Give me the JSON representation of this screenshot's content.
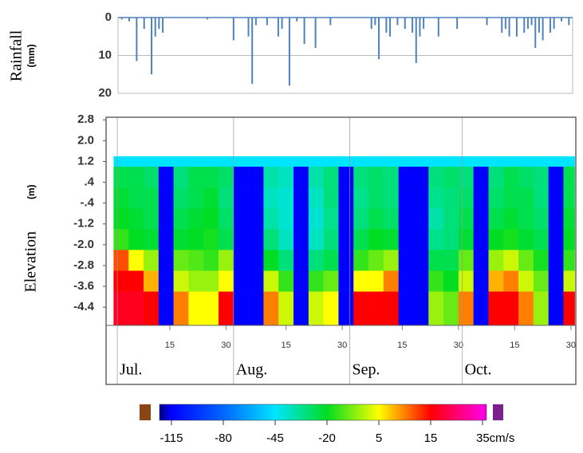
{
  "chart_data": [
    {
      "type": "bar",
      "ylabel": "Rainfall",
      "yunit": "(mm)",
      "color": "#4f81bd",
      "ylim": [
        0,
        20
      ],
      "yticks": [
        0,
        10,
        20
      ],
      "y_reversed": true,
      "grid": true,
      "xlim": [
        0,
        122
      ],
      "x": [
        1,
        3,
        5,
        7,
        9,
        10,
        11,
        12,
        24,
        31,
        35,
        36,
        37,
        40,
        43,
        44,
        46,
        48,
        50,
        53,
        57,
        68,
        69,
        70,
        72,
        73,
        75,
        77,
        79,
        80,
        81,
        82,
        86,
        91,
        99,
        103,
        104,
        105,
        107,
        109,
        110,
        111,
        112,
        113,
        114,
        116,
        117,
        119,
        121
      ],
      "values": [
        0.5,
        1,
        11.5,
        3,
        15,
        5,
        3,
        4,
        0.5,
        6,
        5,
        17.5,
        2,
        2,
        5,
        3,
        18,
        1,
        7,
        8,
        2,
        3,
        2,
        11,
        4,
        5,
        2,
        3,
        4,
        12,
        5,
        3,
        5,
        3,
        2,
        4,
        3,
        5,
        5,
        4,
        3,
        2,
        8,
        4,
        6,
        4,
        3,
        1,
        2
      ]
    },
    {
      "type": "heatmap",
      "ylabel": "Elevation",
      "yunit": "(m)",
      "xlim": [
        -3,
        122.3
      ],
      "ylim": [
        -5.1,
        2.9
      ],
      "yticks": [
        2.8,
        {
          "value": 2,
          "label": "2.0"
        },
        1.2,
        {
          "value": 0.4,
          "label": ".4"
        },
        {
          "value": -0.4,
          "label": "-.4"
        },
        -1.2,
        {
          "value": -2,
          "label": "-2.0"
        },
        -2.8,
        -3.6,
        -4.4
      ],
      "xticks": [
        {
          "value": 14,
          "label": "15"
        },
        {
          "value": 29,
          "label": "30"
        },
        {
          "value": 45,
          "label": "15"
        },
        {
          "value": 60,
          "label": "30"
        },
        {
          "value": 76,
          "label": "15"
        },
        {
          "value": 91,
          "label": "30"
        },
        {
          "value": 106,
          "label": "15"
        },
        {
          "value": 121,
          "label": "30"
        }
      ],
      "months": [
        {
          "value": 0,
          "label": "Jul."
        },
        {
          "value": 31,
          "label": "Aug."
        },
        {
          "value": 62,
          "label": "Sep."
        },
        {
          "value": 92,
          "label": "Oct."
        }
      ],
      "x_edges": [
        -1,
        3,
        7,
        11,
        15,
        19,
        23,
        27,
        31,
        35,
        39,
        43,
        47,
        51,
        55,
        59,
        63,
        67,
        71,
        75,
        79,
        83,
        87,
        91,
        95,
        99,
        103,
        107,
        111,
        115,
        119,
        122
      ],
      "y_edges": [
        1.4,
        1.0,
        0.2,
        -0.6,
        -1.4,
        -2.2,
        -3.0,
        -3.8,
        -5.1
      ],
      "z": [
        [
          -45,
          -45,
          -45,
          -45,
          -45,
          -45,
          -45,
          -45,
          -45,
          -45,
          -45,
          -45,
          -45,
          -45,
          -45,
          -45,
          -45,
          -45,
          -45,
          -45,
          -45,
          -45,
          -45,
          -45,
          -45,
          -45,
          -45,
          -45,
          -45,
          -45,
          -45
        ],
        [
          -25,
          -25,
          -28,
          -115,
          -30,
          -25,
          -25,
          -28,
          -115,
          -115,
          -35,
          -38,
          -115,
          -35,
          -30,
          -115,
          -30,
          -28,
          -30,
          -115,
          -115,
          -30,
          -28,
          -30,
          -115,
          -30,
          -25,
          -28,
          -30,
          -115,
          -25
        ],
        [
          -22,
          -25,
          -25,
          -115,
          -28,
          -25,
          -22,
          -30,
          -115,
          -115,
          -38,
          -40,
          -115,
          -38,
          -30,
          -115,
          -32,
          -28,
          -30,
          -115,
          -115,
          -32,
          -30,
          -28,
          -115,
          -28,
          -25,
          -25,
          -30,
          -115,
          -25
        ],
        [
          -20,
          -22,
          -25,
          -115,
          -25,
          -22,
          -20,
          -28,
          -115,
          -115,
          -35,
          -40,
          -115,
          -40,
          -32,
          -115,
          -30,
          -25,
          -28,
          -115,
          -115,
          -35,
          -30,
          -25,
          -115,
          -25,
          -22,
          -25,
          -28,
          -115,
          -22
        ],
        [
          -15,
          -20,
          -22,
          -115,
          -22,
          -20,
          -18,
          -25,
          -115,
          -115,
          -30,
          -38,
          -115,
          -38,
          -30,
          -115,
          -25,
          -20,
          -22,
          -115,
          -115,
          -32,
          -30,
          -22,
          -115,
          -20,
          -18,
          -22,
          -25,
          -115,
          -20
        ],
        [
          12,
          5,
          -5,
          -115,
          -10,
          -12,
          -15,
          -5,
          -115,
          -115,
          -20,
          -30,
          -115,
          -30,
          -25,
          -115,
          -15,
          -10,
          -5,
          -115,
          -115,
          -25,
          -25,
          -10,
          -115,
          -5,
          0,
          -10,
          -18,
          -115,
          -15
        ],
        [
          15,
          15,
          8,
          -115,
          0,
          -5,
          -5,
          5,
          -115,
          -115,
          0,
          -15,
          -115,
          -15,
          -10,
          -115,
          5,
          5,
          10,
          -115,
          -115,
          -15,
          -20,
          0,
          -115,
          8,
          10,
          0,
          -10,
          -115,
          0
        ],
        [
          18,
          18,
          15,
          -115,
          10,
          5,
          5,
          15,
          -115,
          -115,
          10,
          0,
          -115,
          0,
          5,
          -115,
          15,
          15,
          15,
          -115,
          -115,
          -5,
          -10,
          10,
          -115,
          15,
          15,
          10,
          -5,
          -115,
          15
        ]
      ],
      "clim": [
        -130,
        40
      ],
      "colorscale": [
        [
          -130,
          "#000080"
        ],
        [
          -115,
          "#0000ff"
        ],
        [
          -80,
          "#0066ff"
        ],
        [
          -45,
          "#00e5ff"
        ],
        [
          -20,
          "#00dd22"
        ],
        [
          5,
          "#ffff00"
        ],
        [
          15,
          "#ff0000"
        ],
        [
          35,
          "#ff00dd"
        ],
        [
          40,
          "#e000e0"
        ]
      ],
      "colorbar_ticks": [
        -115,
        -80,
        -45,
        -20,
        5,
        15,
        {
          "value": 35,
          "label": "35cm/s"
        }
      ],
      "under_color": "#8b4513",
      "over_color": "#7b1f8c"
    }
  ]
}
